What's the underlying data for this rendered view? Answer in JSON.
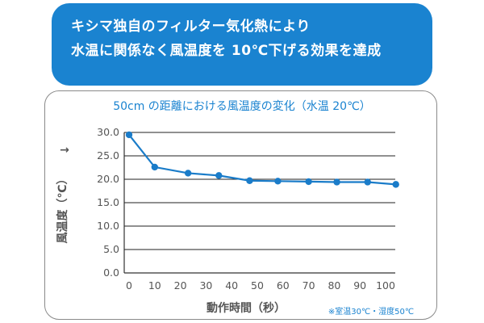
{
  "banner": {
    "line1": "キシマ独自のフィルター気化熱により",
    "line2": "水温に関係なく風温度を 10℃下げる効果を達成"
  },
  "chart_data": {
    "type": "line",
    "title": "50cm の距離における風温度の変化（水温 20℃）",
    "xlabel": "動作時間（秒）",
    "ylabel": "風温度（℃）",
    "ylabel_arrow": "→",
    "note": "※室温30℃・湿度50℃",
    "xlim": [
      0,
      100
    ],
    "ylim": [
      0,
      30
    ],
    "x_ticks": [
      "0",
      "10",
      "20",
      "30",
      "40",
      "50",
      "60",
      "70",
      "80",
      "90",
      "100"
    ],
    "y_ticks": [
      "0.0",
      "5.0",
      "10.0",
      "15.0",
      "20.0",
      "25.0",
      "30.0"
    ],
    "grid": true,
    "series": [
      {
        "x": [
          0,
          10,
          23,
          35,
          47,
          58,
          70,
          81,
          93,
          104
        ],
        "y": [
          29.5,
          22.6,
          21.3,
          20.8,
          19.7,
          19.6,
          19.5,
          19.4,
          19.4,
          18.9
        ]
      }
    ],
    "colors": {
      "line": "#1a7cc9",
      "title": "#1a83d0",
      "axis_text": "#555555",
      "note": "#1a83d0"
    }
  }
}
